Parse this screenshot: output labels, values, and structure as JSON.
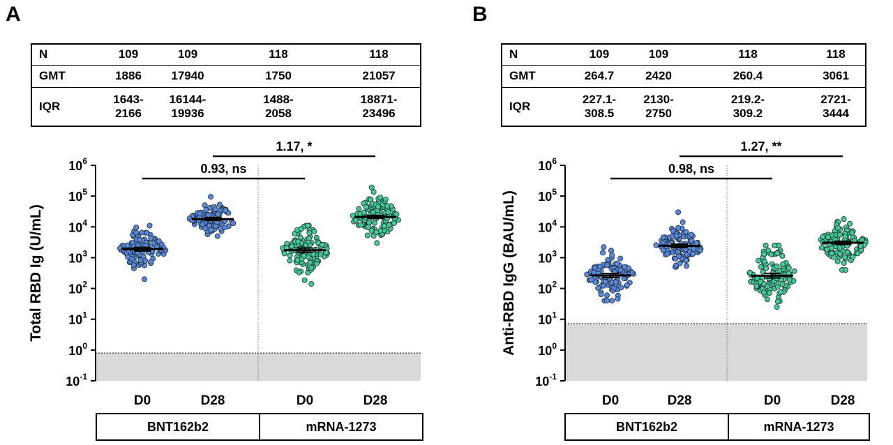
{
  "colors": {
    "bnt": "#5b88d6",
    "mrna": "#45c98f",
    "lod_fill": "#d9d9d9",
    "outline": "#1a2a3a"
  },
  "chart_data": [
    {
      "panel": "A",
      "type": "scatter",
      "ylabel": "Total RBD Ig (U/mL)",
      "yscale": "log",
      "ylim": [
        0.1,
        1000000
      ],
      "yticks": [
        {
          "base": "10",
          "exp": "-1"
        },
        {
          "base": "10",
          "exp": "0"
        },
        {
          "base": "10",
          "exp": "1"
        },
        {
          "base": "10",
          "exp": "2"
        },
        {
          "base": "10",
          "exp": "3"
        },
        {
          "base": "10",
          "exp": "4"
        },
        {
          "base": "10",
          "exp": "5"
        },
        {
          "base": "10",
          "exp": "6"
        }
      ],
      "lod": 0.8,
      "groups": [
        "BNT162b2",
        "mRNA-1273"
      ],
      "categories": [
        "D0",
        "D28",
        "D0",
        "D28"
      ],
      "table": {
        "rows": [
          {
            "label": "N",
            "cells": [
              "109",
              "109",
              "118",
              "118"
            ]
          },
          {
            "label": "GMT",
            "cells": [
              "1886",
              "17940",
              "1750",
              "21057"
            ]
          },
          {
            "label": "IQR",
            "cells": [
              "1643-\n2166",
              "16144-\n19936",
              "1488-\n2058",
              "18871-\n23496"
            ]
          }
        ]
      },
      "series": [
        {
          "group": "BNT162b2",
          "category": "D0",
          "n": 109,
          "gmt": 1886,
          "ci": [
            1643,
            2166
          ],
          "range": [
            200,
            11000
          ],
          "color_key": "bnt"
        },
        {
          "group": "BNT162b2",
          "category": "D28",
          "n": 109,
          "gmt": 17940,
          "ci": [
            16144,
            19936
          ],
          "range": [
            5000,
            95000
          ],
          "color_key": "bnt"
        },
        {
          "group": "mRNA-1273",
          "category": "D0",
          "n": 118,
          "gmt": 1750,
          "ci": [
            1488,
            2058
          ],
          "range": [
            140,
            11000
          ],
          "color_key": "mrna"
        },
        {
          "group": "mRNA-1273",
          "category": "D28",
          "n": 118,
          "gmt": 21057,
          "ci": [
            18871,
            23496
          ],
          "range": [
            3000,
            190000
          ],
          "color_key": "mrna"
        }
      ],
      "comparisons": [
        {
          "label": "0.93, ns",
          "from": 0,
          "to": 2
        },
        {
          "label": "1.17, *",
          "from": 1,
          "to": 3
        }
      ]
    },
    {
      "panel": "B",
      "type": "scatter",
      "ylabel": "Anti-RBD IgG (BAU/mL)",
      "yscale": "log",
      "ylim": [
        0.1,
        1000000
      ],
      "yticks": [
        {
          "base": "10",
          "exp": "-1"
        },
        {
          "base": "10",
          "exp": "0"
        },
        {
          "base": "10",
          "exp": "1"
        },
        {
          "base": "10",
          "exp": "2"
        },
        {
          "base": "10",
          "exp": "3"
        },
        {
          "base": "10",
          "exp": "4"
        },
        {
          "base": "10",
          "exp": "5"
        },
        {
          "base": "10",
          "exp": "6"
        }
      ],
      "lod": 7.2,
      "groups": [
        "BNT162b2",
        "mRNA-1273"
      ],
      "categories": [
        "D0",
        "D28",
        "D0",
        "D28"
      ],
      "table": {
        "rows": [
          {
            "label": "N",
            "cells": [
              "109",
              "109",
              "118",
              "118"
            ]
          },
          {
            "label": "GMT",
            "cells": [
              "264.7",
              "2420",
              "260.4",
              "3061"
            ]
          },
          {
            "label": "IQR",
            "cells": [
              "227.1-\n308.5",
              "2130-\n2750",
              "219.2-\n309.2",
              "2721-\n3444"
            ]
          }
        ]
      },
      "series": [
        {
          "group": "BNT162b2",
          "category": "D0",
          "n": 109,
          "gmt": 264.7,
          "ci": [
            227.1,
            308.5
          ],
          "range": [
            40,
            2200
          ],
          "color_key": "bnt"
        },
        {
          "group": "BNT162b2",
          "category": "D28",
          "n": 109,
          "gmt": 2420,
          "ci": [
            2130,
            2750
          ],
          "range": [
            500,
            30000
          ],
          "color_key": "bnt"
        },
        {
          "group": "mRNA-1273",
          "category": "D0",
          "n": 118,
          "gmt": 260.4,
          "ci": [
            219.2,
            309.2
          ],
          "range": [
            25,
            2500
          ],
          "color_key": "mrna"
        },
        {
          "group": "mRNA-1273",
          "category": "D28",
          "n": 118,
          "gmt": 3061,
          "ci": [
            2721,
            3444
          ],
          "range": [
            400,
            18000
          ],
          "color_key": "mrna"
        }
      ],
      "comparisons": [
        {
          "label": "0.98, ns",
          "from": 0,
          "to": 2
        },
        {
          "label": "1.27, **",
          "from": 1,
          "to": 3
        }
      ]
    }
  ]
}
